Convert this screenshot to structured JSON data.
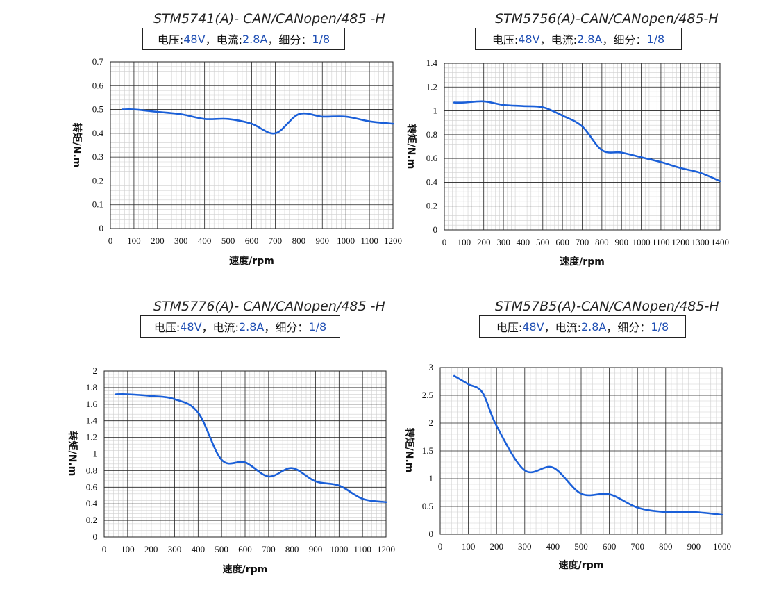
{
  "charts": [
    {
      "title": "STM5741(A)- CAN/CANopen/485 -H",
      "params": {
        "voltage_label": "电压:",
        "voltage": "48V",
        "sep1": "，",
        "current_label": "电流:",
        "current": "2.8A",
        "sep2": "，",
        "micro_label": "细分：",
        "micro": "1/8"
      }
    },
    {
      "title": "STM5756(A)-CAN/CANopen/485-H",
      "params": {
        "voltage_label": "电压:",
        "voltage": "48V",
        "sep1": "，",
        "current_label": "电流:",
        "current": "2.8A",
        "sep2": "，",
        "micro_label": "细分：",
        "micro": "1/8"
      }
    },
    {
      "title": "STM5776(A)- CAN/CANopen/485 -H",
      "params": {
        "voltage_label": "电压:",
        "voltage": "48V",
        "sep1": "，",
        "current_label": "电流:",
        "current": "2.8A",
        "sep2": "，",
        "micro_label": "细分：",
        "micro": "1/8"
      }
    },
    {
      "title": "STM57B5(A)-CAN/CANopen/485-H",
      "params": {
        "voltage_label": "电压:",
        "voltage": "48V",
        "sep1": "，",
        "current_label": "电流:",
        "current": "2.8A",
        "sep2": "，",
        "micro_label": "细分：",
        "micro": "1/8"
      }
    }
  ],
  "colors": {
    "line": "#1a5fd8",
    "grid_major": "#222222",
    "grid_minor": "#cfcfcf",
    "param_value": "#1f4fb4"
  },
  "chart_data": [
    {
      "type": "line",
      "xlabel": "速度/rpm",
      "ylabel": "转矩/N.m",
      "xlim": [
        0,
        1200
      ],
      "ylim": [
        0,
        0.7
      ],
      "xticks": [
        0,
        100,
        200,
        300,
        400,
        500,
        600,
        700,
        800,
        900,
        1000,
        1100,
        1200
      ],
      "yticks": [
        0,
        0.1,
        0.2,
        0.3,
        0.4,
        0.5,
        0.6,
        0.7
      ],
      "ytick_labels": [
        "0",
        "0.1",
        "0.2",
        "0.3",
        "0.4",
        "0.5",
        "0.6",
        "0.7"
      ],
      "grid": true,
      "x": [
        50,
        100,
        200,
        300,
        400,
        500,
        600,
        700,
        800,
        900,
        1000,
        1100,
        1200
      ],
      "y": [
        0.5,
        0.5,
        0.49,
        0.48,
        0.46,
        0.46,
        0.44,
        0.4,
        0.48,
        0.47,
        0.47,
        0.45,
        0.44
      ]
    },
    {
      "type": "line",
      "xlabel": "速度/rpm",
      "ylabel": "转矩/N.m",
      "xlim": [
        0,
        1400
      ],
      "ylim": [
        0,
        1.4
      ],
      "xticks": [
        0,
        100,
        200,
        300,
        400,
        500,
        600,
        700,
        800,
        900,
        1000,
        1100,
        1200,
        1300,
        1400
      ],
      "yticks": [
        0,
        0.2,
        0.4,
        0.6,
        0.8,
        1,
        1.2,
        1.4
      ],
      "ytick_labels": [
        "0",
        "0.2",
        "0.4",
        "0.6",
        "0.8",
        "1",
        "1.2",
        "1.4"
      ],
      "grid": true,
      "x": [
        50,
        100,
        200,
        300,
        400,
        500,
        600,
        700,
        800,
        900,
        1000,
        1100,
        1200,
        1300,
        1400
      ],
      "y": [
        1.07,
        1.07,
        1.08,
        1.05,
        1.04,
        1.03,
        0.96,
        0.87,
        0.67,
        0.65,
        0.61,
        0.57,
        0.52,
        0.48,
        0.41
      ]
    },
    {
      "type": "line",
      "xlabel": "速度/rpm",
      "ylabel": "转矩/N.m",
      "xlim": [
        0,
        1200
      ],
      "ylim": [
        0,
        2
      ],
      "xticks": [
        0,
        100,
        200,
        300,
        400,
        500,
        600,
        700,
        800,
        900,
        1000,
        1100,
        1200
      ],
      "yticks": [
        0,
        0.2,
        0.4,
        0.6,
        0.8,
        1,
        1.2,
        1.4,
        1.6,
        1.8,
        2
      ],
      "ytick_labels": [
        "0",
        "0.2",
        "0.4",
        "0.6",
        "0.8",
        "1",
        "1.2",
        "1.4",
        "1.6",
        "1.8",
        "2"
      ],
      "grid": true,
      "x": [
        50,
        100,
        200,
        300,
        400,
        500,
        600,
        700,
        800,
        900,
        1000,
        1100,
        1200
      ],
      "y": [
        1.72,
        1.72,
        1.7,
        1.66,
        1.5,
        0.93,
        0.9,
        0.73,
        0.83,
        0.67,
        0.62,
        0.46,
        0.42
      ]
    },
    {
      "type": "line",
      "xlabel": "速度/rpm",
      "ylabel": "转矩/N.m",
      "xlim": [
        0,
        1000
      ],
      "ylim": [
        0,
        3
      ],
      "xticks": [
        0,
        100,
        200,
        300,
        400,
        500,
        600,
        700,
        800,
        900,
        1000
      ],
      "yticks": [
        0,
        0.5,
        1,
        1.5,
        2,
        2.5,
        3
      ],
      "ytick_labels": [
        "0",
        "0.5",
        "1",
        "1.5",
        "2",
        "2.5",
        "3"
      ],
      "grid": true,
      "x": [
        50,
        100,
        150,
        200,
        300,
        400,
        500,
        600,
        700,
        800,
        900,
        1000
      ],
      "y": [
        2.85,
        2.7,
        2.55,
        1.95,
        1.15,
        1.2,
        0.73,
        0.72,
        0.48,
        0.4,
        0.4,
        0.35
      ]
    }
  ]
}
